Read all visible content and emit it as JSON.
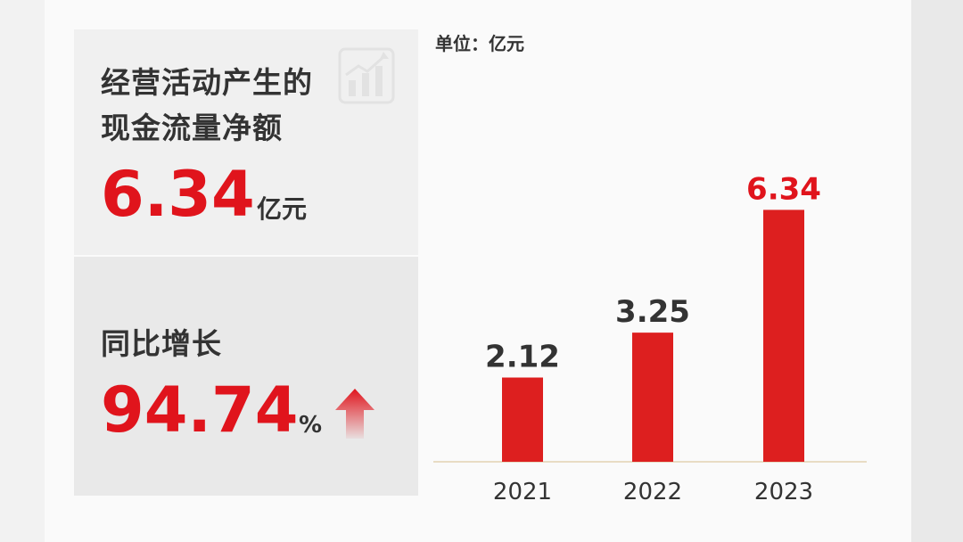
{
  "left_panel": {
    "metric_title_line1": "经营活动产生的",
    "metric_title_line2": "现金流量净额",
    "metric_value": "6.34",
    "metric_unit": "亿元",
    "growth_title": "同比增长",
    "growth_value": "94.74",
    "growth_unit": "%",
    "growth_icon": "up-arrow-icon",
    "watermark_icon": "chart-growth-icon"
  },
  "colors": {
    "accent": "#e0141c",
    "bar": "#dd1f1f",
    "text": "#333333",
    "axis": "#e8dcc4"
  },
  "chart_data": {
    "type": "bar",
    "unit_label": "单位：亿元",
    "categories": [
      "2021",
      "2022",
      "2023"
    ],
    "values": [
      2.12,
      3.25,
      6.34
    ],
    "value_labels": [
      "2.12",
      "3.25",
      "6.34"
    ],
    "highlight_index": 2,
    "title": "",
    "xlabel": "",
    "ylabel": "",
    "ylim": [
      0,
      7
    ],
    "grid": false
  }
}
